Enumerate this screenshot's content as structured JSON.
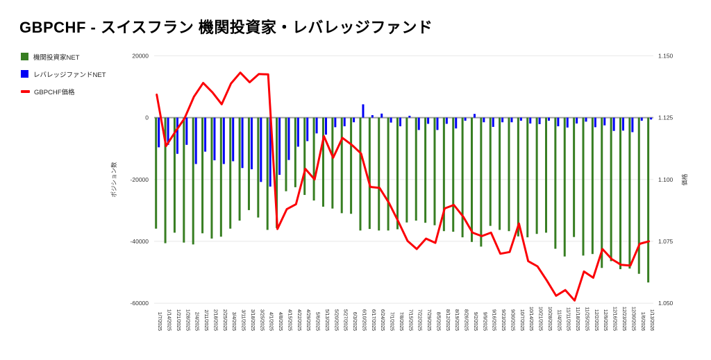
{
  "title": "GBPCHF - スイスフラン 機関投資家・レバレッジファンド",
  "legend": {
    "items": [
      {
        "label": "機関投資家NET",
        "color": "#377e22",
        "marker": "square"
      },
      {
        "label": "レバレッジファンドNET",
        "color": "#0000f5",
        "marker": "square"
      },
      {
        "label": "GBPCHF価格",
        "color": "#fb0006",
        "marker": "line"
      }
    ]
  },
  "chart_data": {
    "type": "combo",
    "grid": true,
    "legend_position": "top-left",
    "categories": [
      "1/7/2025",
      "1/14/2025",
      "1/21/2025",
      "1/28/2025",
      "2/4/2025",
      "2/11/2025",
      "2/18/2025",
      "2/25/2025",
      "3/4/2025",
      "3/11/2025",
      "3/18/2025",
      "3/25/2025",
      "4/1/2025",
      "4/8/2025",
      "4/15/2025",
      "4/22/2025",
      "4/29/2025",
      "5/6/2025",
      "5/13/2025",
      "5/20/2025",
      "5/27/2025",
      "6/3/2025",
      "6/10/2025",
      "6/17/2025",
      "6/24/2025",
      "7/1/2025",
      "7/8/2025",
      "7/15/2025",
      "7/22/2025",
      "7/29/2025",
      "8/5/2025",
      "8/12/2025",
      "8/19/2025",
      "8/26/2025",
      "9/2/2025",
      "9/9/2025",
      "9/16/2025",
      "9/23/2025",
      "9/30/2025",
      "10/7/2025",
      "10/14/2025",
      "10/21/2025",
      "10/28/2025",
      "11/4/2025",
      "11/11/2025",
      "11/18/2025",
      "11/25/2025",
      "12/2/2025",
      "12/9/2025",
      "12/16/2025",
      "12/23/2025",
      "12/30/2025",
      "1/6/2026",
      "1/13/2026"
    ],
    "series": [
      {
        "name": "機関投資家NET",
        "type": "bar",
        "axis": "left",
        "color": "#377e22",
        "values": [
          -35900,
          -40600,
          -37200,
          -40400,
          -41000,
          -37400,
          -39100,
          -38500,
          -35900,
          -33300,
          -29900,
          -32300,
          -36300,
          -35700,
          -23800,
          -22500,
          -25000,
          -26800,
          -28800,
          -29400,
          -30900,
          -31100,
          -36500,
          -36000,
          -36500,
          -36500,
          -36100,
          -33900,
          -33300,
          -34000,
          -34800,
          -36700,
          -36900,
          -38700,
          -40200,
          -41700,
          -35000,
          -36300,
          -36700,
          -38400,
          -38700,
          -37600,
          -37200,
          -42400,
          -44900,
          -38600,
          -44600,
          -44100,
          -48600,
          -46400,
          -49000,
          -48800,
          -50500,
          -53300
        ]
      },
      {
        "name": "レバレッジファンドNET",
        "type": "bar",
        "axis": "left",
        "color": "#0000f5",
        "values": [
          -9600,
          -8800,
          -11700,
          -8800,
          -15000,
          -11000,
          -13800,
          -15000,
          -14100,
          -16300,
          -16700,
          -20800,
          -22300,
          -18500,
          -13700,
          -9400,
          -7600,
          -5100,
          -5500,
          -3100,
          -2800,
          -1500,
          4300,
          800,
          1300,
          -1600,
          -2800,
          600,
          -4000,
          -2000,
          -4000,
          -2000,
          -3500,
          -1000,
          1200,
          -1500,
          -3000,
          -1500,
          -1500,
          -1000,
          -1900,
          -2100,
          -1000,
          -2800,
          -3200,
          -1900,
          -1300,
          -3100,
          -2500,
          -4300,
          -4200,
          -4700,
          -1000,
          -600
        ]
      },
      {
        "name": "GBPCHF価格",
        "type": "line",
        "axis": "right",
        "color": "#fb0006",
        "values": [
          1.1343,
          1.1135,
          1.1193,
          1.1247,
          1.1334,
          1.139,
          1.1352,
          1.1304,
          1.1388,
          1.1432,
          1.1393,
          1.1426,
          1.1425,
          1.08,
          1.088,
          1.09,
          1.1043,
          1.1,
          1.1175,
          1.1088,
          1.1168,
          1.114,
          1.1105,
          1.097,
          1.0966,
          1.0906,
          1.0831,
          1.0752,
          1.0719,
          1.0761,
          1.0744,
          1.0883,
          1.0897,
          1.085,
          1.0785,
          1.0771,
          1.0785,
          1.07,
          1.0707,
          1.0822,
          1.067,
          1.0649,
          1.0592,
          1.053,
          1.0553,
          1.0511,
          1.0628,
          1.0603,
          1.0719,
          1.0678,
          1.0655,
          1.0652,
          1.074,
          1.075
        ]
      }
    ],
    "left_axis": {
      "title": "ポジション数",
      "min": -60000,
      "max": 20000,
      "ticks": [
        20000,
        0,
        -20000,
        -40000,
        -60000
      ],
      "tick_labels": [
        "20000",
        "0",
        "-20000",
        "-40000",
        "-60000"
      ]
    },
    "right_axis": {
      "title": "価格",
      "min": 1.05,
      "max": 1.15,
      "ticks": [
        1.15,
        1.125,
        1.1,
        1.075,
        1.05
      ],
      "tick_labels": [
        "1.150",
        "1.125",
        "1.100",
        "1.075",
        "1.050"
      ]
    },
    "colors": {
      "grid": "#e8e8e8",
      "zero_line": "#9e9e9e",
      "axis_text": "#333333",
      "category_text": "#222222"
    }
  }
}
